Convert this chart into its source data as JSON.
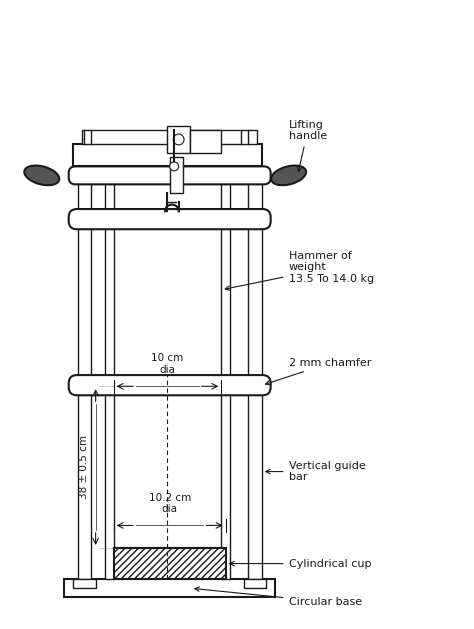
{
  "bg_color": "#ffffff",
  "line_color": "#1a1a1a",
  "labels": {
    "lifting_handle": "Lifting\nhandle",
    "hammer": "Hammer of\nweight\n13.5 To 14.0 kg",
    "chamfer": "2 mm chamfer",
    "guide_bar": "Vertical guide\nbar",
    "cup": "Cylindrical cup",
    "base": "Circular base",
    "dia_top": "10 cm\ndia",
    "dia_bot": "10.2 cm\ndia",
    "height": "38 ± 0.5 cm"
  },
  "fig_width": 4.74,
  "fig_height": 6.29,
  "dpi": 100
}
